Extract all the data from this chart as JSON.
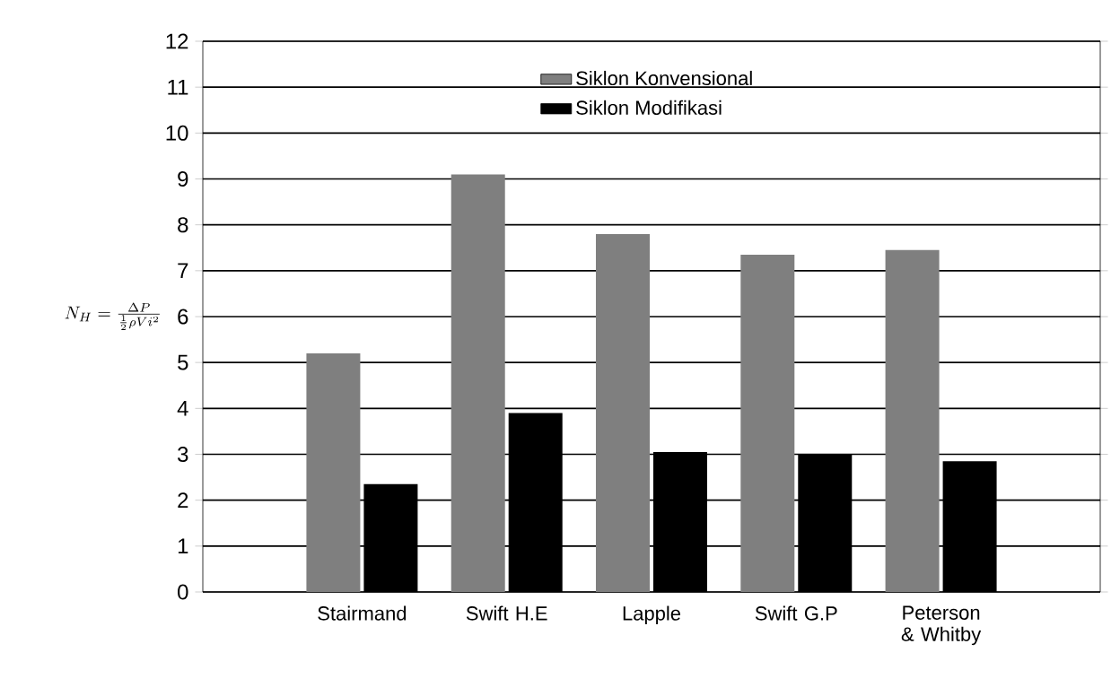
{
  "chart_data": {
    "type": "bar",
    "ylabel": "N_{H} = \\frac{\\Delta P}{\\frac{1}{2}\\rho V i^{2}}",
    "categories": [
      "Stairmand",
      "Swift H.E",
      "Lapple",
      "Swift G.P",
      "Peterson & Whitby"
    ],
    "series": [
      {
        "name": "Siklon Konvensional",
        "color": "#7f7f7f",
        "values": [
          5.2,
          9.1,
          7.8,
          7.35,
          7.45
        ]
      },
      {
        "name": "Siklon Modifikasi",
        "color": "#000000",
        "values": [
          2.35,
          3.9,
          3.05,
          3.0,
          2.85
        ]
      }
    ],
    "ylim": [
      0,
      12
    ],
    "yticks": [
      0,
      1,
      2,
      3,
      4,
      5,
      6,
      7,
      8,
      9,
      10,
      11,
      12
    ],
    "grid": "y",
    "legend": "top"
  }
}
